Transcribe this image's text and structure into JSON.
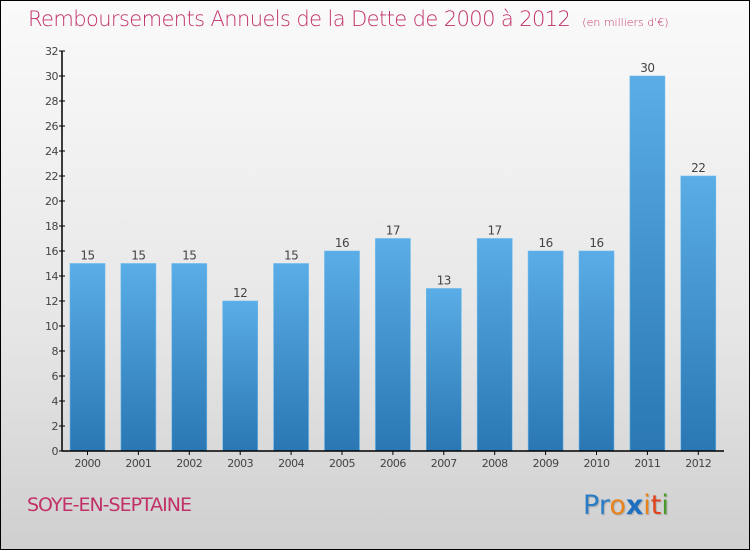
{
  "header": {
    "title": "Remboursements Annuels de la Dette de 2000 à 2012",
    "subtitle": "(en milliers d'€)"
  },
  "footer": {
    "city": "SOYE-EN-SEPTAINE",
    "logo": {
      "letters": [
        {
          "char": "P",
          "color": "#2a7cc7"
        },
        {
          "char": "r",
          "color": "#2a7cc7"
        },
        {
          "char": "o",
          "color": "#e8821a"
        },
        {
          "char": "x",
          "color": "#1f6fc0"
        },
        {
          "char": "i",
          "color": "#e8821a"
        },
        {
          "char": "t",
          "color": "#e0421c"
        },
        {
          "char": "i",
          "color": "#4a9a2a"
        }
      ]
    }
  },
  "colors": {
    "title": "#c2306a",
    "bar_top": "#5aade6",
    "bar_bottom": "#2a77b3"
  },
  "chart_data": {
    "type": "bar",
    "title": "Remboursements Annuels de la Dette de 2000 à 2012",
    "subtitle": "(en milliers d'€)",
    "xlabel": "",
    "ylabel": "",
    "categories": [
      "2000",
      "2001",
      "2002",
      "2003",
      "2004",
      "2005",
      "2006",
      "2007",
      "2008",
      "2009",
      "2010",
      "2011",
      "2012"
    ],
    "values": [
      15,
      15,
      15,
      12,
      15,
      16,
      17,
      13,
      17,
      16,
      16,
      30,
      22
    ],
    "ylim": [
      0,
      32
    ],
    "yticks": [
      0,
      2,
      4,
      6,
      8,
      10,
      12,
      14,
      16,
      18,
      20,
      22,
      24,
      26,
      28,
      30,
      32
    ],
    "grid": false,
    "legend": "none",
    "data_labels": true
  }
}
